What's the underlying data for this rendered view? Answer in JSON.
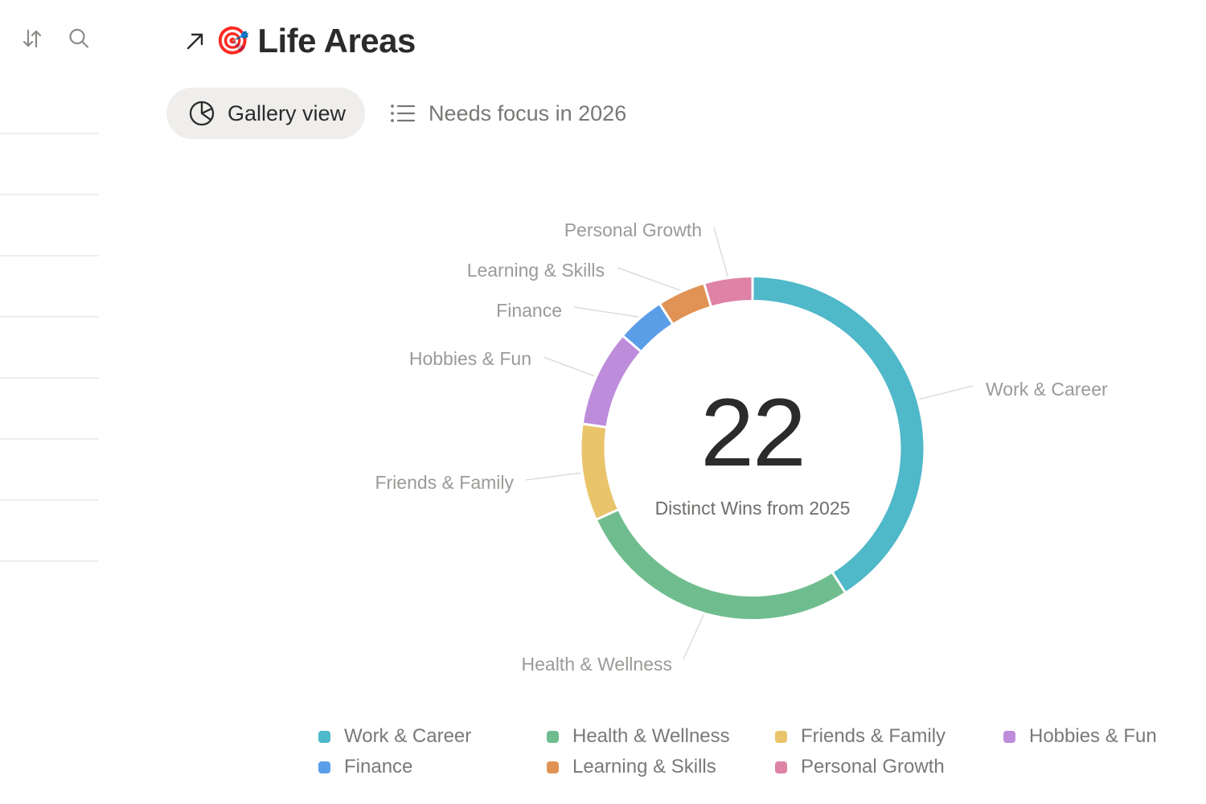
{
  "sidebar": {
    "tools": [
      {
        "name": "sort",
        "icon": "sort-arrows-icon"
      },
      {
        "name": "search",
        "icon": "search-icon"
      }
    ],
    "row_count": 8
  },
  "header": {
    "open_icon": "arrow-up-right-icon",
    "emoji": "🎯",
    "title": "Life Areas"
  },
  "tabs": [
    {
      "label": "Gallery view",
      "icon": "pie-chart-icon",
      "active": true
    },
    {
      "label": "Needs focus in 2026",
      "icon": "list-icon",
      "active": false
    }
  ],
  "chart_data": {
    "type": "pie",
    "variant": "donut",
    "title": "",
    "center_value": "22",
    "center_label": "Distinct Wins from 2025",
    "categories": [
      "Work & Career",
      "Health & Wellness",
      "Friends & Family",
      "Hobbies & Fun",
      "Finance",
      "Learning & Skills",
      "Personal Growth"
    ],
    "values": [
      9,
      6,
      2,
      2,
      1,
      1,
      1
    ],
    "colors": [
      "#4fb8c9",
      "#6fbd8e",
      "#e9c46a",
      "#bd8cdb",
      "#5b9ee8",
      "#e09354",
      "#de82a6"
    ],
    "labels_on_chart": true,
    "legend": {
      "position": "bottom",
      "entries": [
        "Work & Career",
        "Health & Wellness",
        "Friends & Family",
        "Hobbies & Fun",
        "Finance",
        "Learning & Skills",
        "Personal Growth"
      ]
    }
  }
}
